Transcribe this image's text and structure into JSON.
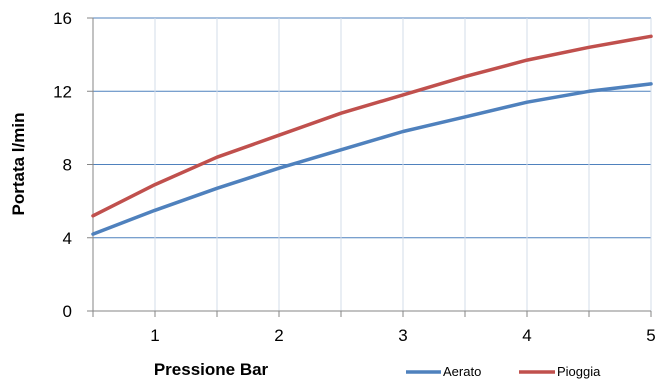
{
  "chart_data": {
    "type": "line",
    "xlabel": "Pressione Bar",
    "ylabel": "Portata l/min",
    "xlim": [
      0.5,
      5
    ],
    "ylim": [
      0,
      16
    ],
    "x_ticks": [
      1,
      2,
      3,
      4,
      5
    ],
    "y_ticks": [
      0,
      4,
      8,
      12,
      16
    ],
    "x_tick_labels": [
      "1",
      "2",
      "3",
      "4",
      "5"
    ],
    "y_tick_labels": [
      "0",
      "4",
      "8",
      "12",
      "16"
    ],
    "grid": true,
    "legend_position": "bottom-right",
    "series": [
      {
        "name": "Aerato",
        "color": "#4F81BD",
        "points": [
          [
            0.5,
            4.2
          ],
          [
            1.0,
            5.5
          ],
          [
            1.5,
            6.7
          ],
          [
            2.0,
            7.8
          ],
          [
            2.5,
            8.8
          ],
          [
            3.0,
            9.8
          ],
          [
            3.5,
            10.6
          ],
          [
            4.0,
            11.4
          ],
          [
            4.5,
            12.0
          ],
          [
            5.0,
            12.4
          ]
        ]
      },
      {
        "name": "Pioggia",
        "color": "#C0504D",
        "points": [
          [
            0.5,
            5.2
          ],
          [
            1.0,
            6.9
          ],
          [
            1.5,
            8.4
          ],
          [
            2.0,
            9.6
          ],
          [
            2.5,
            10.8
          ],
          [
            3.0,
            11.8
          ],
          [
            3.5,
            12.8
          ],
          [
            4.0,
            13.7
          ],
          [
            4.5,
            14.4
          ],
          [
            5.0,
            15.0
          ]
        ]
      }
    ]
  },
  "colors": {
    "gridline": "#4F81BD",
    "axis": "#868686"
  }
}
